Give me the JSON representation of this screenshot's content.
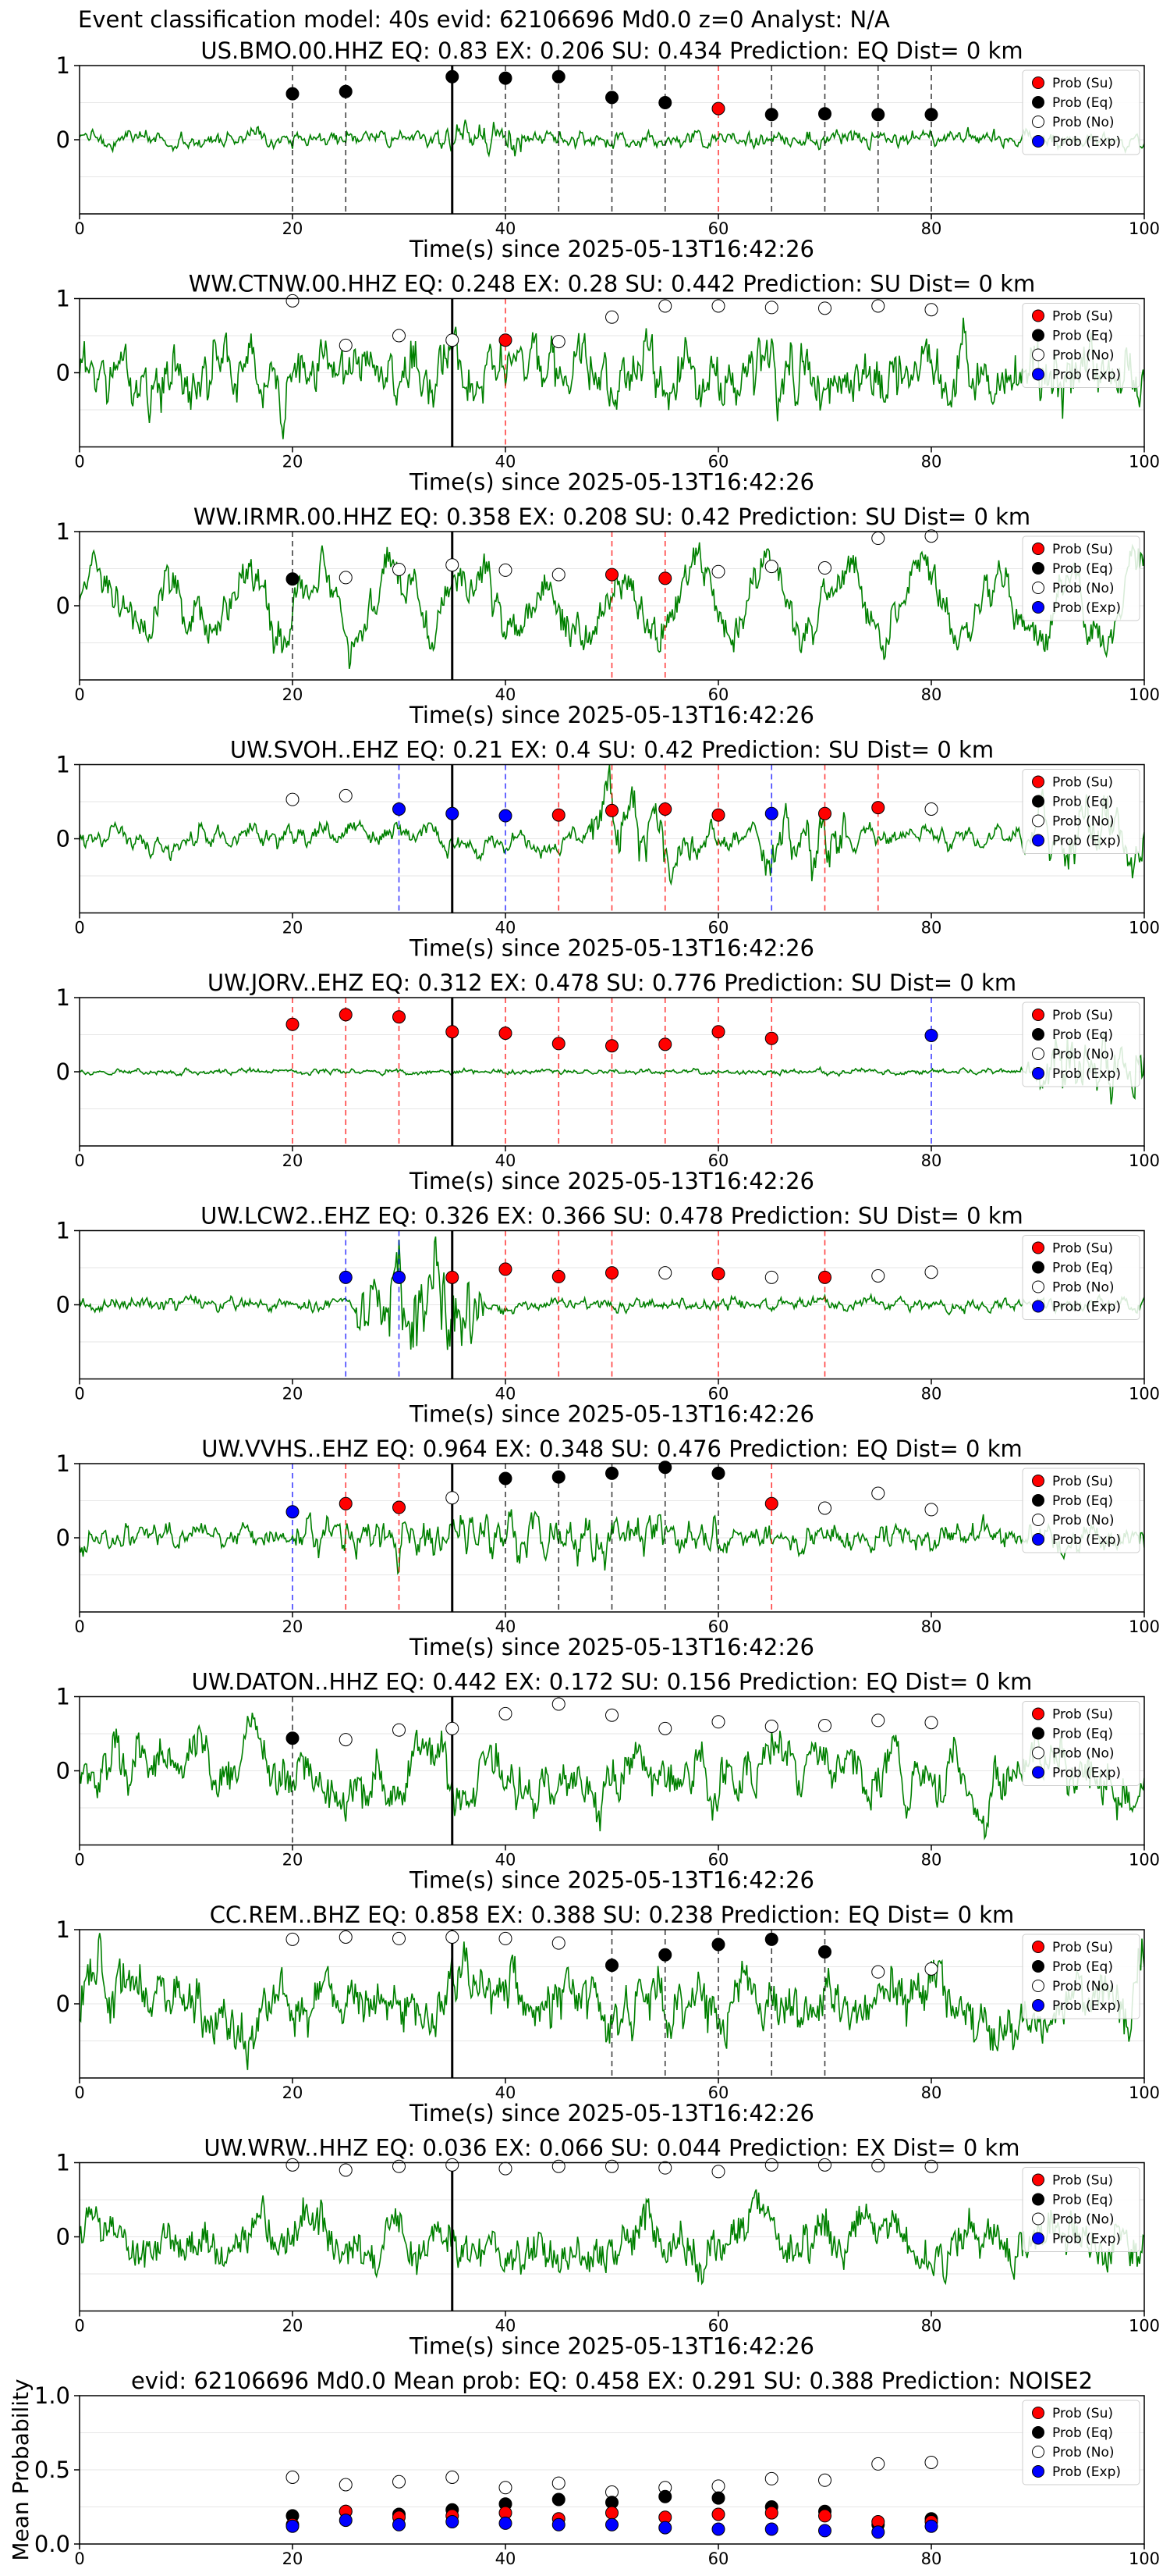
{
  "figure": {
    "suptitle": "Event classification model: 40s evid: 62106696 Md0.0 z=0 Analyst: N/A",
    "legend_labels": [
      "Prob (Su)",
      "Prob (Eq)",
      "Prob (No)",
      "Prob (Exp)"
    ],
    "legend_colors": [
      "#ff0000",
      "#000000",
      "#ffffff",
      "#0000ff"
    ],
    "waveform_color": "#008000"
  },
  "chart_data": [
    {
      "type": "line",
      "title": "US.BMO.00.HHZ   EQ: 0.83  EX: 0.206  SU: 0.434   Prediction: EQ    Dist= 0 km",
      "xlabel": "Time(s) since 2025-05-13T16:42:26",
      "xlim": [
        0,
        100
      ],
      "ylim": [
        -1,
        1
      ],
      "xticks": [
        "0",
        "20",
        "40",
        "60",
        "80",
        "100"
      ],
      "yticks": [
        "1",
        "0"
      ],
      "grid": true,
      "legend": "upper-right",
      "arrival": 35,
      "markers": [
        {
          "t": 20,
          "cls": "eq",
          "p": 0.62
        },
        {
          "t": 25,
          "cls": "eq",
          "p": 0.65
        },
        {
          "t": 35,
          "cls": "eq",
          "p": 0.85
        },
        {
          "t": 40,
          "cls": "eq",
          "p": 0.83
        },
        {
          "t": 45,
          "cls": "eq",
          "p": 0.85
        },
        {
          "t": 50,
          "cls": "eq",
          "p": 0.57
        },
        {
          "t": 55,
          "cls": "eq",
          "p": 0.5
        },
        {
          "t": 60,
          "cls": "su",
          "p": 0.42
        },
        {
          "t": 65,
          "cls": "eq",
          "p": 0.34
        },
        {
          "t": 70,
          "cls": "eq",
          "p": 0.35
        },
        {
          "t": 75,
          "cls": "eq",
          "p": 0.34
        },
        {
          "t": 80,
          "cls": "eq",
          "p": 0.34
        }
      ]
    },
    {
      "type": "line",
      "title": "WW.CTNW.00.HHZ   EQ: 0.248  EX: 0.28  SU: 0.442   Prediction: SU    Dist= 0 km",
      "xlabel": "Time(s) since 2025-05-13T16:42:26",
      "xlim": [
        0,
        100
      ],
      "ylim": [
        -1,
        1
      ],
      "xticks": [
        "0",
        "20",
        "40",
        "60",
        "80",
        "100"
      ],
      "yticks": [
        "1",
        "0"
      ],
      "grid": true,
      "legend": "upper-right",
      "arrival": 35,
      "markers": [
        {
          "t": 20,
          "cls": "no",
          "p": 0.97
        },
        {
          "t": 25,
          "cls": "no",
          "p": 0.37
        },
        {
          "t": 30,
          "cls": "no",
          "p": 0.5
        },
        {
          "t": 35,
          "cls": "no",
          "p": 0.44
        },
        {
          "t": 40,
          "cls": "su",
          "p": 0.44
        },
        {
          "t": 45,
          "cls": "no",
          "p": 0.42
        },
        {
          "t": 50,
          "cls": "no",
          "p": 0.75
        },
        {
          "t": 55,
          "cls": "no",
          "p": 0.9
        },
        {
          "t": 60,
          "cls": "no",
          "p": 0.9
        },
        {
          "t": 65,
          "cls": "no",
          "p": 0.88
        },
        {
          "t": 70,
          "cls": "no",
          "p": 0.87
        },
        {
          "t": 75,
          "cls": "no",
          "p": 0.9
        },
        {
          "t": 80,
          "cls": "no",
          "p": 0.85
        }
      ]
    },
    {
      "type": "line",
      "title": "WW.IRMR.00.HHZ   EQ: 0.358  EX: 0.208  SU: 0.42   Prediction: SU    Dist= 0 km",
      "xlabel": "Time(s) since 2025-05-13T16:42:26",
      "xlim": [
        0,
        100
      ],
      "ylim": [
        -1,
        1
      ],
      "xticks": [
        "0",
        "20",
        "40",
        "60",
        "80",
        "100"
      ],
      "yticks": [
        "1",
        "0"
      ],
      "grid": true,
      "legend": "upper-right",
      "arrival": 35,
      "markers": [
        {
          "t": 20,
          "cls": "eq",
          "p": 0.36
        },
        {
          "t": 25,
          "cls": "no",
          "p": 0.38
        },
        {
          "t": 30,
          "cls": "no",
          "p": 0.49
        },
        {
          "t": 35,
          "cls": "no",
          "p": 0.55
        },
        {
          "t": 40,
          "cls": "no",
          "p": 0.48
        },
        {
          "t": 45,
          "cls": "no",
          "p": 0.42
        },
        {
          "t": 50,
          "cls": "su",
          "p": 0.42
        },
        {
          "t": 55,
          "cls": "su",
          "p": 0.37
        },
        {
          "t": 60,
          "cls": "no",
          "p": 0.46
        },
        {
          "t": 65,
          "cls": "no",
          "p": 0.53
        },
        {
          "t": 70,
          "cls": "no",
          "p": 0.51
        },
        {
          "t": 75,
          "cls": "no",
          "p": 0.91
        },
        {
          "t": 80,
          "cls": "no",
          "p": 0.94
        }
      ]
    },
    {
      "type": "line",
      "title": "UW.SVOH..EHZ   EQ: 0.21  EX: 0.4  SU: 0.42   Prediction: SU    Dist= 0 km",
      "xlabel": "Time(s) since 2025-05-13T16:42:26",
      "xlim": [
        0,
        100
      ],
      "ylim": [
        -1,
        1
      ],
      "xticks": [
        "0",
        "20",
        "40",
        "60",
        "80",
        "100"
      ],
      "yticks": [
        "1",
        "0"
      ],
      "grid": true,
      "legend": "upper-right",
      "arrival": 35,
      "markers": [
        {
          "t": 20,
          "cls": "no",
          "p": 0.53
        },
        {
          "t": 25,
          "cls": "no",
          "p": 0.58
        },
        {
          "t": 30,
          "cls": "exp",
          "p": 0.4
        },
        {
          "t": 35,
          "cls": "exp",
          "p": 0.34
        },
        {
          "t": 40,
          "cls": "exp",
          "p": 0.31
        },
        {
          "t": 45,
          "cls": "su",
          "p": 0.32
        },
        {
          "t": 50,
          "cls": "su",
          "p": 0.38
        },
        {
          "t": 55,
          "cls": "su",
          "p": 0.4
        },
        {
          "t": 60,
          "cls": "su",
          "p": 0.32
        },
        {
          "t": 65,
          "cls": "exp",
          "p": 0.34
        },
        {
          "t": 70,
          "cls": "su",
          "p": 0.34
        },
        {
          "t": 75,
          "cls": "su",
          "p": 0.42
        },
        {
          "t": 80,
          "cls": "no",
          "p": 0.4
        }
      ]
    },
    {
      "type": "line",
      "title": "UW.JORV..EHZ   EQ: 0.312  EX: 0.478  SU: 0.776   Prediction: SU    Dist= 0 km",
      "xlabel": "Time(s) since 2025-05-13T16:42:26",
      "xlim": [
        0,
        100
      ],
      "ylim": [
        -1,
        1
      ],
      "xticks": [
        "0",
        "20",
        "40",
        "60",
        "80",
        "100"
      ],
      "yticks": [
        "1",
        "0"
      ],
      "grid": true,
      "legend": "upper-right",
      "arrival": 35,
      "markers": [
        {
          "t": 20,
          "cls": "su",
          "p": 0.64
        },
        {
          "t": 25,
          "cls": "su",
          "p": 0.77
        },
        {
          "t": 30,
          "cls": "su",
          "p": 0.74
        },
        {
          "t": 35,
          "cls": "su",
          "p": 0.54
        },
        {
          "t": 40,
          "cls": "su",
          "p": 0.52
        },
        {
          "t": 45,
          "cls": "su",
          "p": 0.38
        },
        {
          "t": 50,
          "cls": "su",
          "p": 0.35
        },
        {
          "t": 55,
          "cls": "su",
          "p": 0.37
        },
        {
          "t": 60,
          "cls": "su",
          "p": 0.54
        },
        {
          "t": 65,
          "cls": "su",
          "p": 0.45
        },
        {
          "t": 80,
          "cls": "exp",
          "p": 0.49
        }
      ]
    },
    {
      "type": "line",
      "title": "UW.LCW2..EHZ   EQ: 0.326  EX: 0.366  SU: 0.478   Prediction: SU    Dist= 0 km",
      "xlabel": "Time(s) since 2025-05-13T16:42:26",
      "xlim": [
        0,
        100
      ],
      "ylim": [
        -1,
        1
      ],
      "xticks": [
        "0",
        "20",
        "40",
        "60",
        "80",
        "100"
      ],
      "yticks": [
        "1",
        "0"
      ],
      "grid": true,
      "legend": "upper-right",
      "arrival": 35,
      "markers": [
        {
          "t": 25,
          "cls": "exp",
          "p": 0.37
        },
        {
          "t": 30,
          "cls": "exp",
          "p": 0.37
        },
        {
          "t": 35,
          "cls": "su",
          "p": 0.37
        },
        {
          "t": 40,
          "cls": "su",
          "p": 0.48
        },
        {
          "t": 45,
          "cls": "su",
          "p": 0.38
        },
        {
          "t": 50,
          "cls": "su",
          "p": 0.43
        },
        {
          "t": 55,
          "cls": "no",
          "p": 0.43
        },
        {
          "t": 60,
          "cls": "su",
          "p": 0.42
        },
        {
          "t": 65,
          "cls": "no",
          "p": 0.37
        },
        {
          "t": 70,
          "cls": "su",
          "p": 0.37
        },
        {
          "t": 75,
          "cls": "no",
          "p": 0.39
        },
        {
          "t": 80,
          "cls": "no",
          "p": 0.44
        }
      ]
    },
    {
      "type": "line",
      "title": "UW.VVHS..EHZ   EQ: 0.964  EX: 0.348  SU: 0.476   Prediction: EQ    Dist= 0 km",
      "xlabel": "Time(s) since 2025-05-13T16:42:26",
      "xlim": [
        0,
        100
      ],
      "ylim": [
        -1,
        1
      ],
      "xticks": [
        "0",
        "20",
        "40",
        "60",
        "80",
        "100"
      ],
      "yticks": [
        "1",
        "0"
      ],
      "grid": true,
      "legend": "upper-right",
      "arrival": 35,
      "markers": [
        {
          "t": 20,
          "cls": "exp",
          "p": 0.35
        },
        {
          "t": 25,
          "cls": "su",
          "p": 0.46
        },
        {
          "t": 30,
          "cls": "su",
          "p": 0.41
        },
        {
          "t": 35,
          "cls": "no",
          "p": 0.54
        },
        {
          "t": 40,
          "cls": "eq",
          "p": 0.8
        },
        {
          "t": 45,
          "cls": "eq",
          "p": 0.82
        },
        {
          "t": 50,
          "cls": "eq",
          "p": 0.87
        },
        {
          "t": 55,
          "cls": "eq",
          "p": 0.95
        },
        {
          "t": 60,
          "cls": "eq",
          "p": 0.87
        },
        {
          "t": 65,
          "cls": "su",
          "p": 0.46
        },
        {
          "t": 70,
          "cls": "no",
          "p": 0.4
        },
        {
          "t": 75,
          "cls": "no",
          "p": 0.6
        },
        {
          "t": 80,
          "cls": "no",
          "p": 0.38
        }
      ]
    },
    {
      "type": "line",
      "title": "UW.DATON..HHZ   EQ: 0.442  EX: 0.172  SU: 0.156   Prediction: EQ    Dist= 0 km",
      "xlabel": "Time(s) since 2025-05-13T16:42:26",
      "xlim": [
        0,
        100
      ],
      "ylim": [
        -1,
        1
      ],
      "xticks": [
        "0",
        "20",
        "40",
        "60",
        "80",
        "100"
      ],
      "yticks": [
        "1",
        "0"
      ],
      "grid": true,
      "legend": "upper-right",
      "arrival": 35,
      "markers": [
        {
          "t": 20,
          "cls": "eq",
          "p": 0.44
        },
        {
          "t": 25,
          "cls": "no",
          "p": 0.42
        },
        {
          "t": 30,
          "cls": "no",
          "p": 0.55
        },
        {
          "t": 35,
          "cls": "no",
          "p": 0.57
        },
        {
          "t": 40,
          "cls": "no",
          "p": 0.77
        },
        {
          "t": 45,
          "cls": "no",
          "p": 0.9
        },
        {
          "t": 50,
          "cls": "no",
          "p": 0.75
        },
        {
          "t": 55,
          "cls": "no",
          "p": 0.57
        },
        {
          "t": 60,
          "cls": "no",
          "p": 0.66
        },
        {
          "t": 65,
          "cls": "no",
          "p": 0.6
        },
        {
          "t": 70,
          "cls": "no",
          "p": 0.61
        },
        {
          "t": 75,
          "cls": "no",
          "p": 0.68
        },
        {
          "t": 80,
          "cls": "no",
          "p": 0.65
        }
      ]
    },
    {
      "type": "line",
      "title": "CC.REM..BHZ   EQ: 0.858  EX: 0.388  SU: 0.238   Prediction: EQ    Dist= 0 km",
      "xlabel": "Time(s) since 2025-05-13T16:42:26",
      "xlim": [
        0,
        100
      ],
      "ylim": [
        -1,
        1
      ],
      "xticks": [
        "0",
        "20",
        "40",
        "60",
        "80",
        "100"
      ],
      "yticks": [
        "1",
        "0"
      ],
      "grid": true,
      "legend": "upper-right",
      "arrival": 35,
      "markers": [
        {
          "t": 20,
          "cls": "no",
          "p": 0.87
        },
        {
          "t": 25,
          "cls": "no",
          "p": 0.9
        },
        {
          "t": 30,
          "cls": "no",
          "p": 0.88
        },
        {
          "t": 35,
          "cls": "no",
          "p": 0.9
        },
        {
          "t": 40,
          "cls": "no",
          "p": 0.88
        },
        {
          "t": 45,
          "cls": "no",
          "p": 0.82
        },
        {
          "t": 50,
          "cls": "eq",
          "p": 0.52
        },
        {
          "t": 55,
          "cls": "eq",
          "p": 0.66
        },
        {
          "t": 60,
          "cls": "eq",
          "p": 0.8
        },
        {
          "t": 65,
          "cls": "eq",
          "p": 0.87
        },
        {
          "t": 70,
          "cls": "eq",
          "p": 0.7
        },
        {
          "t": 75,
          "cls": "no",
          "p": 0.43
        },
        {
          "t": 80,
          "cls": "no",
          "p": 0.47
        }
      ]
    },
    {
      "type": "line",
      "title": "UW.WRW..HHZ   EQ: 0.036  EX: 0.066  SU: 0.044   Prediction: EX    Dist= 0 km",
      "xlabel": "Time(s) since 2025-05-13T16:42:26",
      "xlim": [
        0,
        100
      ],
      "ylim": [
        -1,
        1
      ],
      "xticks": [
        "0",
        "20",
        "40",
        "60",
        "80",
        "100"
      ],
      "yticks": [
        "1",
        "0"
      ],
      "grid": true,
      "legend": "upper-right",
      "arrival": 35,
      "markers": [
        {
          "t": 20,
          "cls": "no",
          "p": 0.97
        },
        {
          "t": 25,
          "cls": "no",
          "p": 0.9
        },
        {
          "t": 30,
          "cls": "no",
          "p": 0.95
        },
        {
          "t": 35,
          "cls": "no",
          "p": 0.97
        },
        {
          "t": 40,
          "cls": "no",
          "p": 0.92
        },
        {
          "t": 45,
          "cls": "no",
          "p": 0.95
        },
        {
          "t": 50,
          "cls": "no",
          "p": 0.95
        },
        {
          "t": 55,
          "cls": "no",
          "p": 0.93
        },
        {
          "t": 60,
          "cls": "no",
          "p": 0.88
        },
        {
          "t": 65,
          "cls": "no",
          "p": 0.97
        },
        {
          "t": 70,
          "cls": "no",
          "p": 0.97
        },
        {
          "t": 75,
          "cls": "no",
          "p": 0.96
        },
        {
          "t": 80,
          "cls": "no",
          "p": 0.95
        }
      ]
    },
    {
      "type": "scatter",
      "title": "evid: 62106696  Md0.0   Mean prob:   EQ: 0.458  EX: 0.291  SU: 0.388   Prediction: NOISE2",
      "xlabel": "",
      "ylabel": "Mean Probability",
      "xlim": [
        0,
        100
      ],
      "ylim": [
        0,
        1
      ],
      "xticks": [
        "0",
        "20",
        "40",
        "60",
        "80",
        "100"
      ],
      "yticks": [
        "0.0",
        "0.5",
        "1.0"
      ],
      "grid": true,
      "legend": "upper-right",
      "x": [
        20,
        25,
        30,
        35,
        40,
        45,
        50,
        55,
        60,
        65,
        70,
        75,
        80
      ],
      "series": [
        {
          "cls": "no",
          "values": [
            0.45,
            0.4,
            0.42,
            0.45,
            0.38,
            0.41,
            0.35,
            0.38,
            0.39,
            0.44,
            0.43,
            0.54,
            0.55
          ]
        },
        {
          "cls": "eq",
          "values": [
            0.19,
            0.22,
            0.2,
            0.23,
            0.27,
            0.3,
            0.28,
            0.32,
            0.31,
            0.25,
            0.22,
            0.13,
            0.17
          ]
        },
        {
          "cls": "su",
          "values": [
            0.13,
            0.22,
            0.18,
            0.19,
            0.21,
            0.17,
            0.21,
            0.18,
            0.2,
            0.21,
            0.19,
            0.15,
            0.15
          ]
        },
        {
          "cls": "exp",
          "values": [
            0.12,
            0.16,
            0.13,
            0.15,
            0.14,
            0.13,
            0.13,
            0.11,
            0.1,
            0.1,
            0.09,
            0.08,
            0.12
          ]
        }
      ]
    }
  ]
}
